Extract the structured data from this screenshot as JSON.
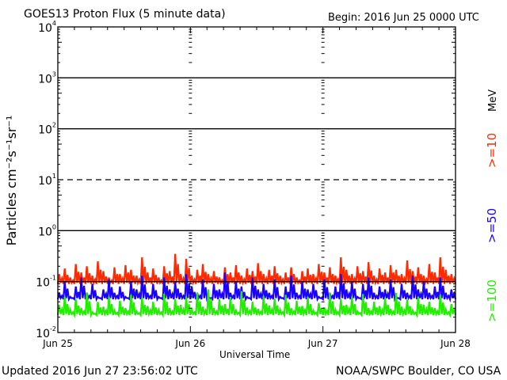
{
  "chart_data": {
    "type": "line",
    "title": "GOES13 Proton Flux (5 minute data)",
    "subtitle": "Begin: 2016 Jun 25 0000 UTC",
    "xlabel": "Universal Time",
    "ylabel": "Particles cm⁻²s⁻¹sr⁻¹",
    "x_tick_labels": [
      "Jun 25",
      "Jun 26",
      "Jun 27",
      "Jun 28"
    ],
    "x_range_hours": [
      0,
      72
    ],
    "y_scale": "log",
    "ylim": [
      0.01,
      10000
    ],
    "y_tick_labels": [
      {
        "base": "10",
        "exp": "4"
      },
      {
        "base": "10",
        "exp": "3"
      },
      {
        "base": "10",
        "exp": "2"
      },
      {
        "base": "10",
        "exp": "1"
      },
      {
        "base": "10",
        "exp": "0"
      },
      {
        "base": "10",
        "exp": "-1"
      },
      {
        "base": "10",
        "exp": "-2"
      }
    ],
    "grid": true,
    "legend_placement": "right",
    "legend_unit": "MeV",
    "series": [
      {
        "name": ">=10",
        "color": "#ff2a00",
        "floor": 0.09,
        "values": [
          0.14,
          0.18,
          0.12,
          0.22,
          0.15,
          0.2,
          0.13,
          0.25,
          0.16,
          0.12,
          0.19,
          0.14,
          0.21,
          0.17,
          0.13,
          0.3,
          0.15,
          0.18,
          0.12,
          0.2,
          0.16,
          0.35,
          0.14,
          0.28,
          0.13,
          0.17,
          0.22,
          0.14,
          0.16,
          0.12,
          0.19,
          0.15,
          0.21,
          0.13,
          0.18,
          0.16,
          0.23,
          0.14,
          0.17,
          0.2,
          0.13,
          0.15,
          0.19,
          0.12,
          0.16,
          0.18,
          0.14,
          0.22,
          0.15,
          0.19,
          0.13,
          0.3,
          0.17,
          0.14,
          0.2,
          0.16,
          0.24,
          0.13,
          0.18,
          0.15,
          0.21,
          0.17,
          0.14,
          0.26,
          0.16,
          0.19,
          0.13,
          0.22,
          0.15,
          0.3,
          0.17,
          0.14
        ]
      },
      {
        "name": ">=50",
        "color": "#1a00ff",
        "floor": 0.045,
        "values": [
          0.06,
          0.1,
          0.05,
          0.08,
          0.12,
          0.06,
          0.09,
          0.05,
          0.07,
          0.11,
          0.06,
          0.08,
          0.05,
          0.1,
          0.07,
          0.13,
          0.06,
          0.09,
          0.05,
          0.12,
          0.07,
          0.1,
          0.06,
          0.14,
          0.08,
          0.06,
          0.11,
          0.05,
          0.09,
          0.07,
          0.15,
          0.06,
          0.1,
          0.08,
          0.05,
          0.12,
          0.07,
          0.09,
          0.06,
          0.11,
          0.05,
          0.08,
          0.13,
          0.06,
          0.1,
          0.07,
          0.09,
          0.05,
          0.11,
          0.06,
          0.08,
          0.14,
          0.07,
          0.1,
          0.05,
          0.09,
          0.12,
          0.06,
          0.08,
          0.07,
          0.11,
          0.05,
          0.09,
          0.06,
          0.13,
          0.07,
          0.1,
          0.06,
          0.08,
          0.12,
          0.06,
          0.07
        ]
      },
      {
        "name": ">=100",
        "color": "#22ee00",
        "floor": 0.022,
        "values": [
          0.035,
          0.05,
          0.028,
          0.045,
          0.03,
          0.06,
          0.025,
          0.04,
          0.032,
          0.05,
          0.027,
          0.042,
          0.03,
          0.055,
          0.026,
          0.048,
          0.033,
          0.04,
          0.028,
          0.058,
          0.03,
          0.045,
          0.035,
          0.05,
          0.028,
          0.06,
          0.032,
          0.07,
          0.03,
          0.045,
          0.036,
          0.05,
          0.027,
          0.065,
          0.031,
          0.04,
          0.029,
          0.052,
          0.034,
          0.046,
          0.028,
          0.055,
          0.03,
          0.042,
          0.033,
          0.05,
          0.027,
          0.038,
          0.031,
          0.06,
          0.028,
          0.045,
          0.035,
          0.05,
          0.026,
          0.057,
          0.03,
          0.04,
          0.033,
          0.048,
          0.029,
          0.06,
          0.032,
          0.044,
          0.027,
          0.05,
          0.035,
          0.04,
          0.03,
          0.055,
          0.028,
          0.036
        ]
      }
    ]
  },
  "footer": {
    "updated": "Updated 2016 Jun 27 23:56:02 UTC",
    "credit": "NOAA/SWPC Boulder, CO USA"
  }
}
